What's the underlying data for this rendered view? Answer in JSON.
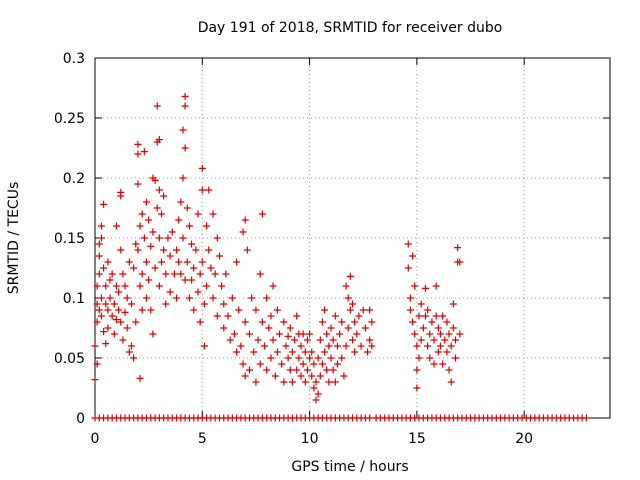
{
  "chart_data": {
    "type": "scatter",
    "title": "Day 191 of 2018, SRMTID for receiver dubo",
    "xlabel": "GPS time / hours",
    "ylabel": "SRMTID / TECUs",
    "xlim": [
      0,
      24
    ],
    "ylim": [
      0,
      0.3
    ],
    "grid": true,
    "marker": "+",
    "color": "#dd0000",
    "x_ticks": [
      {
        "value": 0,
        "label": "0"
      },
      {
        "value": 5,
        "label": "5"
      },
      {
        "value": 10,
        "label": "10"
      },
      {
        "value": 15,
        "label": "15"
      },
      {
        "value": 20,
        "label": "20"
      }
    ],
    "y_ticks": [
      {
        "value": 0,
        "label": "0"
      },
      {
        "value": 0.05,
        "label": "0.05"
      },
      {
        "value": 0.1,
        "label": "0.1"
      },
      {
        "value": 0.15,
        "label": "0.15"
      },
      {
        "value": 0.2,
        "label": "0.2"
      },
      {
        "value": 0.25,
        "label": "0.25"
      },
      {
        "value": 0.3,
        "label": "0.3"
      }
    ],
    "points": [
      [
        0.0,
        0.032
      ],
      [
        0.0,
        0.06
      ],
      [
        0.1,
        0.045
      ],
      [
        0.1,
        0.08
      ],
      [
        0.1,
        0.095
      ],
      [
        0.1,
        0.11
      ],
      [
        0.2,
        0.12
      ],
      [
        0.2,
        0.135
      ],
      [
        0.2,
        0.145
      ],
      [
        0.2,
        0.09
      ],
      [
        0.3,
        0.16
      ],
      [
        0.3,
        0.15
      ],
      [
        0.3,
        0.1
      ],
      [
        0.3,
        0.085
      ],
      [
        0.4,
        0.178
      ],
      [
        0.4,
        0.125
      ],
      [
        0.4,
        0.072
      ],
      [
        0.5,
        0.11
      ],
      [
        0.5,
        0.095
      ],
      [
        0.5,
        0.062
      ],
      [
        0.6,
        0.13
      ],
      [
        0.6,
        0.09
      ],
      [
        0.6,
        0.075
      ],
      [
        0.7,
        0.115
      ],
      [
        0.7,
        0.1
      ],
      [
        0.8,
        0.085
      ],
      [
        0.8,
        0.12
      ],
      [
        0.9,
        0.095
      ],
      [
        0.9,
        0.07
      ],
      [
        1.0,
        0.16
      ],
      [
        1.0,
        0.11
      ],
      [
        1.0,
        0.082
      ],
      [
        1.1,
        0.105
      ],
      [
        1.1,
        0.09
      ],
      [
        1.2,
        0.188
      ],
      [
        1.2,
        0.185
      ],
      [
        1.2,
        0.14
      ],
      [
        1.2,
        0.08
      ],
      [
        1.3,
        0.12
      ],
      [
        1.3,
        0.065
      ],
      [
        1.4,
        0.11
      ],
      [
        1.4,
        0.088
      ],
      [
        1.5,
        0.075
      ],
      [
        1.5,
        0.1
      ],
      [
        1.6,
        0.13
      ],
      [
        1.6,
        0.055
      ],
      [
        1.7,
        0.095
      ],
      [
        1.7,
        0.06
      ],
      [
        1.8,
        0.05
      ],
      [
        1.8,
        0.125
      ],
      [
        1.9,
        0.145
      ],
      [
        1.9,
        0.08
      ],
      [
        2.0,
        0.228
      ],
      [
        2.0,
        0.22
      ],
      [
        2.0,
        0.195
      ],
      [
        2.0,
        0.14
      ],
      [
        2.1,
        0.11
      ],
      [
        2.1,
        0.16
      ],
      [
        2.1,
        0.033
      ],
      [
        2.2,
        0.17
      ],
      [
        2.2,
        0.12
      ],
      [
        2.2,
        0.09
      ],
      [
        2.3,
        0.222
      ],
      [
        2.3,
        0.15
      ],
      [
        2.4,
        0.18
      ],
      [
        2.4,
        0.13
      ],
      [
        2.4,
        0.1
      ],
      [
        2.5,
        0.165
      ],
      [
        2.5,
        0.115
      ],
      [
        2.6,
        0.143
      ],
      [
        2.6,
        0.09
      ],
      [
        2.7,
        0.2
      ],
      [
        2.7,
        0.155
      ],
      [
        2.7,
        0.07
      ],
      [
        2.8,
        0.198
      ],
      [
        2.8,
        0.125
      ],
      [
        2.9,
        0.26
      ],
      [
        2.9,
        0.23
      ],
      [
        2.9,
        0.175
      ],
      [
        3.0,
        0.232
      ],
      [
        3.0,
        0.19
      ],
      [
        3.0,
        0.15
      ],
      [
        3.0,
        0.11
      ],
      [
        3.1,
        0.17
      ],
      [
        3.1,
        0.13
      ],
      [
        3.2,
        0.185
      ],
      [
        3.2,
        0.14
      ],
      [
        3.3,
        0.12
      ],
      [
        3.3,
        0.095
      ],
      [
        3.4,
        0.15
      ],
      [
        3.5,
        0.135
      ],
      [
        3.5,
        0.105
      ],
      [
        3.6,
        0.155
      ],
      [
        3.7,
        0.12
      ],
      [
        3.8,
        0.14
      ],
      [
        3.8,
        0.1
      ],
      [
        3.9,
        0.165
      ],
      [
        3.9,
        0.13
      ],
      [
        4.0,
        0.18
      ],
      [
        4.0,
        0.12
      ],
      [
        4.1,
        0.24
      ],
      [
        4.1,
        0.2
      ],
      [
        4.1,
        0.15
      ],
      [
        4.2,
        0.268
      ],
      [
        4.2,
        0.26
      ],
      [
        4.2,
        0.225
      ],
      [
        4.2,
        0.115
      ],
      [
        4.3,
        0.175
      ],
      [
        4.3,
        0.13
      ],
      [
        4.4,
        0.16
      ],
      [
        4.4,
        0.1
      ],
      [
        4.5,
        0.145
      ],
      [
        4.5,
        0.115
      ],
      [
        4.6,
        0.125
      ],
      [
        4.6,
        0.09
      ],
      [
        4.7,
        0.14
      ],
      [
        4.8,
        0.17
      ],
      [
        4.8,
        0.105
      ],
      [
        4.9,
        0.12
      ],
      [
        4.9,
        0.08
      ],
      [
        5.0,
        0.208
      ],
      [
        5.0,
        0.19
      ],
      [
        5.0,
        0.13
      ],
      [
        5.1,
        0.06
      ],
      [
        5.1,
        0.095
      ],
      [
        5.2,
        0.16
      ],
      [
        5.2,
        0.11
      ],
      [
        5.3,
        0.19
      ],
      [
        5.3,
        0.14
      ],
      [
        5.4,
        0.125
      ],
      [
        5.5,
        0.17
      ],
      [
        5.5,
        0.1
      ],
      [
        5.6,
        0.12
      ],
      [
        5.7,
        0.15
      ],
      [
        5.7,
        0.085
      ],
      [
        5.8,
        0.135
      ],
      [
        5.9,
        0.11
      ],
      [
        6.0,
        0.095
      ],
      [
        6.0,
        0.075
      ],
      [
        6.1,
        0.12
      ],
      [
        6.2,
        0.085
      ],
      [
        6.3,
        0.065
      ],
      [
        6.4,
        0.1
      ],
      [
        6.5,
        0.07
      ],
      [
        6.6,
        0.13
      ],
      [
        6.6,
        0.055
      ],
      [
        6.7,
        0.09
      ],
      [
        6.8,
        0.06
      ],
      [
        6.9,
        0.155
      ],
      [
        6.9,
        0.045
      ],
      [
        7.0,
        0.165
      ],
      [
        7.0,
        0.08
      ],
      [
        7.0,
        0.035
      ],
      [
        7.1,
        0.14
      ],
      [
        7.2,
        0.07
      ],
      [
        7.2,
        0.04
      ],
      [
        7.3,
        0.1
      ],
      [
        7.4,
        0.055
      ],
      [
        7.5,
        0.09
      ],
      [
        7.5,
        0.03
      ],
      [
        7.6,
        0.065
      ],
      [
        7.7,
        0.12
      ],
      [
        7.7,
        0.045
      ],
      [
        7.8,
        0.17
      ],
      [
        7.8,
        0.08
      ],
      [
        7.9,
        0.06
      ],
      [
        8.0,
        0.1
      ],
      [
        8.0,
        0.04
      ],
      [
        8.1,
        0.075
      ],
      [
        8.2,
        0.085
      ],
      [
        8.2,
        0.05
      ],
      [
        8.3,
        0.11
      ],
      [
        8.3,
        0.065
      ],
      [
        8.4,
        0.035
      ],
      [
        8.5,
        0.09
      ],
      [
        8.5,
        0.055
      ],
      [
        8.6,
        0.07
      ],
      [
        8.7,
        0.045
      ],
      [
        8.8,
        0.08
      ],
      [
        8.8,
        0.03
      ],
      [
        8.9,
        0.06
      ],
      [
        9.0,
        0.05
      ],
      [
        9.0,
        0.068
      ],
      [
        9.1,
        0.04
      ],
      [
        9.1,
        0.075
      ],
      [
        9.2,
        0.055
      ],
      [
        9.2,
        0.03
      ],
      [
        9.3,
        0.065
      ],
      [
        9.4,
        0.04
      ],
      [
        9.4,
        0.085
      ],
      [
        9.5,
        0.05
      ],
      [
        9.5,
        0.07
      ],
      [
        9.6,
        0.035
      ],
      [
        9.6,
        0.06
      ],
      [
        9.7,
        0.045
      ],
      [
        9.7,
        0.07
      ],
      [
        9.8,
        0.055
      ],
      [
        9.8,
        0.03
      ],
      [
        9.9,
        0.065
      ],
      [
        9.9,
        0.04
      ],
      [
        10.0,
        0.05
      ],
      [
        10.0,
        0.07
      ],
      [
        10.1,
        0.035
      ],
      [
        10.1,
        0.055
      ],
      [
        10.2,
        0.025
      ],
      [
        10.2,
        0.045
      ],
      [
        10.3,
        0.015
      ],
      [
        10.3,
        0.03
      ],
      [
        10.4,
        0.02
      ],
      [
        10.4,
        0.05
      ],
      [
        10.5,
        0.035
      ],
      [
        10.5,
        0.065
      ],
      [
        10.6,
        0.08
      ],
      [
        10.6,
        0.045
      ],
      [
        10.7,
        0.055
      ],
      [
        10.7,
        0.09
      ],
      [
        10.8,
        0.04
      ],
      [
        10.8,
        0.07
      ],
      [
        10.9,
        0.06
      ],
      [
        10.9,
        0.03
      ],
      [
        11.0,
        0.05
      ],
      [
        11.0,
        0.075
      ],
      [
        11.1,
        0.04
      ],
      [
        11.1,
        0.065
      ],
      [
        11.2,
        0.085
      ],
      [
        11.2,
        0.03
      ],
      [
        11.3,
        0.06
      ],
      [
        11.3,
        0.045
      ],
      [
        11.4,
        0.07
      ],
      [
        11.5,
        0.05
      ],
      [
        11.5,
        0.08
      ],
      [
        11.6,
        0.035
      ],
      [
        11.7,
        0.11
      ],
      [
        11.7,
        0.06
      ],
      [
        11.8,
        0.1
      ],
      [
        11.8,
        0.075
      ],
      [
        11.9,
        0.118
      ],
      [
        11.9,
        0.09
      ],
      [
        12.0,
        0.065
      ],
      [
        12.0,
        0.095
      ],
      [
        12.1,
        0.08
      ],
      [
        12.1,
        0.055
      ],
      [
        12.2,
        0.07
      ],
      [
        12.3,
        0.085
      ],
      [
        12.4,
        0.06
      ],
      [
        12.5,
        0.09
      ],
      [
        12.6,
        0.075
      ],
      [
        12.7,
        0.055
      ],
      [
        12.8,
        0.09
      ],
      [
        12.8,
        0.065
      ],
      [
        12.9,
        0.06
      ],
      [
        12.9,
        0.08
      ],
      [
        14.6,
        0.145
      ],
      [
        14.6,
        0.125
      ],
      [
        14.7,
        0.1
      ],
      [
        14.7,
        0.09
      ],
      [
        14.8,
        0.135
      ],
      [
        14.8,
        0.08
      ],
      [
        14.9,
        0.11
      ],
      [
        14.9,
        0.07
      ],
      [
        15.0,
        0.06
      ],
      [
        15.0,
        0.04
      ],
      [
        15.0,
        0.025
      ],
      [
        15.1,
        0.085
      ],
      [
        15.1,
        0.05
      ],
      [
        15.2,
        0.095
      ],
      [
        15.2,
        0.065
      ],
      [
        15.3,
        0.075
      ],
      [
        15.4,
        0.108
      ],
      [
        15.4,
        0.085
      ],
      [
        15.5,
        0.09
      ],
      [
        15.5,
        0.06
      ],
      [
        15.6,
        0.07
      ],
      [
        15.6,
        0.05
      ],
      [
        15.7,
        0.08
      ],
      [
        15.8,
        0.065
      ],
      [
        15.8,
        0.045
      ],
      [
        15.9,
        0.11
      ],
      [
        15.9,
        0.085
      ],
      [
        16.0,
        0.075
      ],
      [
        16.0,
        0.055
      ],
      [
        16.1,
        0.07
      ],
      [
        16.1,
        0.06
      ],
      [
        16.2,
        0.085
      ],
      [
        16.2,
        0.045
      ],
      [
        16.3,
        0.065
      ],
      [
        16.4,
        0.08
      ],
      [
        16.4,
        0.055
      ],
      [
        16.5,
        0.07
      ],
      [
        16.5,
        0.04
      ],
      [
        16.6,
        0.06
      ],
      [
        16.6,
        0.03
      ],
      [
        16.7,
        0.095
      ],
      [
        16.7,
        0.075
      ],
      [
        16.8,
        0.065
      ],
      [
        16.8,
        0.05
      ],
      [
        16.9,
        0.142
      ],
      [
        16.9,
        0.13
      ],
      [
        17.0,
        0.13
      ],
      [
        17.0,
        0.07
      ]
    ],
    "zero_band": [
      [
        0.0,
        12.8
      ],
      [
        13.1,
        23.0
      ]
    ],
    "zero_spacing": 0.2
  }
}
